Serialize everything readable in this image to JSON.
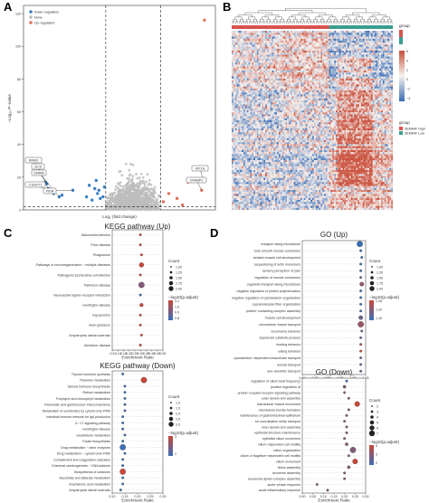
{
  "figure": {
    "panel_letters": {
      "A": "A",
      "B": "B",
      "C": "C",
      "D": "D"
    }
  },
  "colors": {
    "down": "#3b7fc4",
    "none": "#bdbdbd",
    "up": "#e0735a",
    "high": "#d9534f",
    "low": "#3a9e8f",
    "heat_low": "#3a6db5",
    "heat_mid": "#f6f1ee",
    "heat_high": "#c9503c",
    "dot_low": "#3b6fb5",
    "dot_high": "#c8473a"
  },
  "chart_data": [
    {
      "id": "A",
      "type": "scatter",
      "title": "",
      "xlabel": "Log₂ (fold change)",
      "ylabel": "−Log₁₀ P−value",
      "y_ticks": [
        "0",
        "20",
        "40",
        "60",
        "80",
        "100",
        "120"
      ],
      "ylim": [
        0,
        125
      ],
      "legend": [
        "Down−regulation",
        "None",
        "Up−regulation"
      ],
      "legend_position": "top-left",
      "thresholds": {
        "y": 1.3,
        "x_left": -1,
        "x_right": 1
      },
      "xlim": [
        -4,
        3
      ],
      "series": [
        {
          "name": "Down−regulation",
          "color_key": "down",
          "points": [
            [
              -3.2,
              17
            ],
            [
              -3.15,
              16
            ],
            [
              -3.1,
              13
            ],
            [
              -2.7,
              8
            ],
            [
              -2.9,
              10
            ],
            [
              -2.2,
              12
            ],
            [
              -2.6,
              9
            ],
            [
              -1.4,
              13
            ],
            [
              -1.2,
              7
            ],
            [
              -1.6,
              15
            ],
            [
              -1.3,
              10
            ],
            [
              -1.1,
              8
            ],
            [
              -1.5,
              6
            ],
            [
              -1.25,
              12
            ],
            [
              -1.05,
              14
            ],
            [
              -1.7,
              8
            ],
            [
              -1.35,
              18
            ]
          ]
        },
        {
          "name": "Up−regulation",
          "color_key": "up",
          "points": [
            [
              2.6,
              116
            ],
            [
              2.55,
              18
            ],
            [
              2.5,
              12
            ],
            [
              1.6,
              7
            ],
            [
              1.3,
              10
            ],
            [
              1.1,
              5
            ],
            [
              1.8,
              3
            ],
            [
              2.0,
              17
            ]
          ]
        }
      ],
      "labels": [
        "RRAD",
        "ZIC5",
        "SMIM6",
        "C10orf71",
        "PIGR",
        "KIF1A",
        "CRABP1"
      ]
    },
    {
      "id": "B",
      "type": "heatmap",
      "legend_title": "group",
      "scale_ticks": [
        "6",
        "4",
        "2",
        "0",
        "−2",
        "−4"
      ],
      "annotation_title": "group",
      "annotation_items": [
        "SEMA4F High",
        "SEMA4F Low"
      ]
    },
    {
      "id": "C-up",
      "type": "scatter",
      "title": "KEGG pathway (Up)",
      "xlabel": "Enrichment Ratio",
      "x_ticks": [
        "0.5",
        "0.10",
        "0.15",
        "0.20",
        "0.25",
        "0.30",
        "0.35",
        "0.40",
        "0.45",
        "0.50"
      ],
      "categories": [
        "Salmonella infection",
        "Prion disease",
        "Phagosome",
        "Pathways of neurodegeneration − multiple diseases",
        "Pathogenic Escherichia coli infection",
        "Parkinson disease",
        "Neuroactive ligand−receptor interaction",
        "Huntington disease",
        "Gap junction",
        "Axon guidance",
        "Amyotrophic lateral sclerosis",
        "Alzheimer disease"
      ],
      "values": [
        0.3,
        0.3,
        0.31,
        0.31,
        0.3,
        0.31,
        0.3,
        0.31,
        0.3,
        0.3,
        0.31,
        0.3
      ],
      "count": [
        1.0,
        1.0,
        1.0,
        1.5,
        1.0,
        1.75,
        1.0,
        1.25,
        1.0,
        1.0,
        1.0,
        1.0
      ],
      "padj_log": [
        1.0,
        1.0,
        1.0,
        1.0,
        1.0,
        0.9,
        0.8,
        1.0,
        1.0,
        1.0,
        1.0,
        1.0
      ],
      "count_legend": {
        "title": "Count",
        "ticks": [
          "1.00",
          "1.25",
          "1.50",
          "1.75",
          "2.00"
        ]
      },
      "color_legend": {
        "title": "−log10(p.adjust)",
        "ticks": [
          "1.1",
          "1.0",
          "0.9",
          "0.8"
        ]
      }
    },
    {
      "id": "C-down",
      "type": "scatter",
      "title": "KEGG pathway (Down)",
      "xlabel": "Enrichment Ratio",
      "x_ticks": [
        "0.10",
        "0.15",
        "0.20",
        "0.25",
        "0.30"
      ],
      "categories": [
        "Thyroid hormone synthesis",
        "Thiamine metabolism",
        "Steroid hormone biosynthesis",
        "Retinol metabolism",
        "Porphyrin and chlorophyll metabolism",
        "Pancreatic and gastricreceer interconversions",
        "Metabolism of xenobiotics by cytochrome P450",
        "Intestinal immune network for IgA production",
        "IL−17 signaling pathway",
        "Huntington disease",
        "Glutathione metabolism",
        "Folate biosynthesis",
        "Drug metabolism − other enzymes",
        "Drug metabolism − cytochrome P450",
        "Complement and coagulation cascades",
        "Chemical carcinogenesis − DNA adducts",
        "Biosynthesis of cofactors",
        "Ascorbate and aldarate metabolism",
        "Arachidonic acid metabolism",
        "Amyotrophic lateral sclerosis"
      ],
      "values": [
        0.13,
        0.23,
        0.14,
        0.14,
        0.14,
        0.14,
        0.14,
        0.13,
        0.13,
        0.13,
        0.14,
        0.13,
        0.13,
        0.14,
        0.13,
        0.13,
        0.13,
        0.13,
        0.13,
        0.12
      ],
      "count": [
        1.0,
        1.5,
        1.0,
        1.0,
        1.0,
        1.0,
        1.0,
        1.0,
        1.0,
        1.0,
        1.0,
        1.0,
        1.5,
        1.0,
        1.0,
        1.0,
        1.5,
        1.0,
        1.0,
        1.0
      ],
      "padj_log": [
        1,
        3,
        1,
        1,
        1,
        1,
        1,
        1,
        1,
        1,
        1,
        1,
        1,
        1,
        1,
        1,
        3,
        1,
        1,
        1
      ],
      "count_legend": {
        "title": "Count",
        "ticks": [
          "1.0",
          "1.5",
          "2.0",
          "2.5",
          "3.0"
        ]
      },
      "color_legend": {
        "title": "−log10(p.adjust)",
        "ticks": [
          "3",
          "2"
        ]
      }
    },
    {
      "id": "D-up",
      "type": "scatter",
      "title": "GO (Up)",
      "xlabel": "Enrichment Ratio",
      "x_ticks": [
        "0.00",
        "0.25",
        "0.50",
        "0.75",
        "1.00",
        "1.25"
      ],
      "categories": [
        "transport along microtubule",
        "tonic smooth muscle contraction",
        "striated muscle cell development",
        "sequestering of actin monomers",
        "sensory perception of pain",
        "regulation of muscle contraction",
        "organelle transport along microtubule",
        "negative regulation of protein polymerization",
        "negative regulation of cytoskeleton organization",
        "supramolecular fiber organization",
        "protein−containing complex assembly",
        "muscle cell development",
        "microtubule−based transport",
        "locomotory behavior",
        "isoprenoid catabolic process",
        "feeding behavior",
        "eating behavior",
        "cytoskeleton−dependent intracellular transport",
        "axonal transport",
        "axo−dendritic transport"
      ],
      "values": [
        1.18,
        1.2,
        1.22,
        1.2,
        1.2,
        1.2,
        1.22,
        1.2,
        1.2,
        1.2,
        1.2,
        1.2,
        1.2,
        1.22,
        1.2,
        1.2,
        1.2,
        1.2,
        1.2,
        1.2
      ],
      "count": [
        1.5,
        1.0,
        1.0,
        1.0,
        1.0,
        1.0,
        1.25,
        1.0,
        1.0,
        1.0,
        1.0,
        1.25,
        1.5,
        1.0,
        1.0,
        1.0,
        1.0,
        1.0,
        1.0,
        1.0
      ],
      "padj_log": [
        1.1,
        1.1,
        1.1,
        1.1,
        1.1,
        1.15,
        1.2,
        1.1,
        1.1,
        1.1,
        1.1,
        1.15,
        1.2,
        1.15,
        1.15,
        1.2,
        1.25,
        1.15,
        1.15,
        1.15
      ],
      "count_legend": {
        "title": "Count",
        "ticks": [
          "1.00",
          "1.25",
          "1.50",
          "1.75",
          "2.00"
        ]
      },
      "color_legend": {
        "title": "−log10(p.adjust)",
        "ticks": [
          "1.25",
          "1.20",
          "1.15"
        ]
      }
    },
    {
      "id": "D-down",
      "type": "scatter",
      "title": "GO (Down)",
      "xlabel": "Enrichment Ratio",
      "x_ticks": [
        "0.00",
        "0.05",
        "0.10",
        "0.15",
        "0.20",
        "0.25",
        "0.30"
      ],
      "categories": [
        "regulation of cilium beat frequency",
        "positive regulation of",
        "protein−coupled receptor signaling pathway",
        "outer dynein arm assembly",
        "microtubule−based movement",
        "microtubule bundle formation",
        "maintenance of gastrointestinal epithelium",
        "ion coordination entity transport",
        "inner dynein arm assembly",
        "epithelial structure maintenance",
        "epithelial cilium movement",
        "cilium−dependent cell motility",
        "cilium organization",
        "cilium or flagellum−dependent cell motility",
        "cilium movement",
        "cilium assembly",
        "axoneme assembly",
        "axonemal dynein complex assembly",
        "acute−phase response",
        "acute inflammatory response"
      ],
      "values": [
        0.21,
        0.2,
        0.2,
        0.22,
        0.26,
        0.22,
        0.21,
        0.2,
        0.21,
        0.21,
        0.2,
        0.21,
        0.24,
        0.22,
        0.25,
        0.22,
        0.2,
        0.2,
        0.07,
        0.12
      ],
      "count": [
        2,
        3,
        2,
        2,
        6,
        2,
        2,
        2,
        2,
        2,
        2,
        3,
        7,
        2,
        6,
        3,
        2,
        2,
        2,
        2
      ],
      "padj_log": [
        2,
        3,
        3,
        3,
        4,
        3,
        3,
        3,
        3,
        3,
        3,
        3,
        3,
        3,
        4,
        3,
        3,
        3,
        3,
        3
      ],
      "count_legend": {
        "title": "Count",
        "ticks": [
          "2",
          "3",
          "4",
          "5",
          "6",
          "7"
        ]
      },
      "color_legend": {
        "title": "−log10(p.adjust)",
        "ticks": [
          "4",
          "3",
          "2"
        ]
      }
    }
  ]
}
